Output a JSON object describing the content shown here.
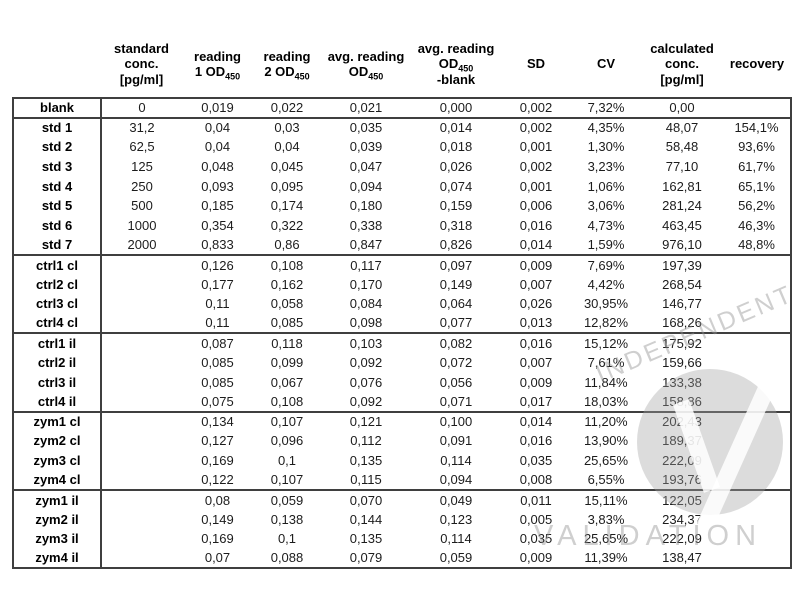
{
  "watermark": {
    "diagonal_text": "INDEPENDENT",
    "horizontal_text": "VALIDATION",
    "circle_color": "rgba(163,163,163,0.38)",
    "glyph_color": "rgba(255,255,255,0.85)",
    "text_color": "rgba(148,148,148,0.45)"
  },
  "table": {
    "columns": [
      {
        "id": "row-label",
        "header_lines": []
      },
      {
        "id": "standard-conc",
        "header_lines": [
          {
            "t": "standard"
          },
          {
            "t": "conc."
          },
          {
            "t": "[pg/ml]"
          }
        ]
      },
      {
        "id": "reading-1",
        "header_lines": [
          {
            "t": "reading"
          },
          {
            "t": "1 OD",
            "sub": "450"
          }
        ]
      },
      {
        "id": "reading-2",
        "header_lines": [
          {
            "t": "reading"
          },
          {
            "t": "2 OD",
            "sub": "450"
          }
        ]
      },
      {
        "id": "avg-reading",
        "header_lines": [
          {
            "t": "avg. reading"
          },
          {
            "t": "OD",
            "sub": "450"
          }
        ]
      },
      {
        "id": "avg-reading-blank",
        "header_lines": [
          {
            "t": "avg. reading"
          },
          {
            "t": "OD",
            "sub": "450"
          },
          {
            "t": "-blank"
          }
        ]
      },
      {
        "id": "sd",
        "header_lines": [
          {
            "t": "SD"
          }
        ]
      },
      {
        "id": "cv",
        "header_lines": [
          {
            "t": "CV"
          }
        ]
      },
      {
        "id": "calculated-conc",
        "header_lines": [
          {
            "t": "calculated"
          },
          {
            "t": "conc."
          },
          {
            "t": "[pg/ml]"
          }
        ]
      },
      {
        "id": "recovery",
        "header_lines": [
          {
            "t": "recovery"
          }
        ]
      }
    ],
    "groups": [
      {
        "name": "blank",
        "rows": [
          {
            "label": "blank",
            "cells": [
              "0",
              "0,019",
              "0,022",
              "0,021",
              "0,000",
              "0,002",
              "7,32%",
              "0,00",
              ""
            ]
          }
        ]
      },
      {
        "name": "standards",
        "rows": [
          {
            "label": "std 1",
            "cells": [
              "31,2",
              "0,04",
              "0,03",
              "0,035",
              "0,014",
              "0,002",
              "4,35%",
              "48,07",
              "154,1%"
            ]
          },
          {
            "label": "std 2",
            "cells": [
              "62,5",
              "0,04",
              "0,04",
              "0,039",
              "0,018",
              "0,001",
              "1,30%",
              "58,48",
              "93,6%"
            ]
          },
          {
            "label": "std 3",
            "cells": [
              "125",
              "0,048",
              "0,045",
              "0,047",
              "0,026",
              "0,002",
              "3,23%",
              "77,10",
              "61,7%"
            ]
          },
          {
            "label": "std 4",
            "cells": [
              "250",
              "0,093",
              "0,095",
              "0,094",
              "0,074",
              "0,001",
              "1,06%",
              "162,81",
              "65,1%"
            ]
          },
          {
            "label": "std 5",
            "cells": [
              "500",
              "0,185",
              "0,174",
              "0,180",
              "0,159",
              "0,006",
              "3,06%",
              "281,24",
              "56,2%"
            ]
          },
          {
            "label": "std 6",
            "cells": [
              "1000",
              "0,354",
              "0,322",
              "0,338",
              "0,318",
              "0,016",
              "4,73%",
              "463,45",
              "46,3%"
            ]
          },
          {
            "label": "std 7",
            "cells": [
              "2000",
              "0,833",
              "0,86",
              "0,847",
              "0,826",
              "0,014",
              "1,59%",
              "976,10",
              "48,8%"
            ]
          }
        ]
      },
      {
        "name": "ctrl-cl",
        "rows": [
          {
            "label": "ctrl1 cl",
            "cells": [
              "",
              "0,126",
              "0,108",
              "0,117",
              "0,097",
              "0,009",
              "7,69%",
              "197,39",
              ""
            ]
          },
          {
            "label": "ctrl2 cl",
            "cells": [
              "",
              "0,177",
              "0,162",
              "0,170",
              "0,149",
              "0,007",
              "4,42%",
              "268,54",
              ""
            ]
          },
          {
            "label": "ctrl3 cl",
            "cells": [
              "",
              "0,11",
              "0,058",
              "0,084",
              "0,064",
              "0,026",
              "30,95%",
              "146,77",
              ""
            ]
          },
          {
            "label": "ctrl4 cl",
            "cells": [
              "",
              "0,11",
              "0,085",
              "0,098",
              "0,077",
              "0,013",
              "12,82%",
              "168,26",
              ""
            ]
          }
        ]
      },
      {
        "name": "ctrl-il",
        "rows": [
          {
            "label": "ctrl1 il",
            "cells": [
              "",
              "0,087",
              "0,118",
              "0,103",
              "0,082",
              "0,016",
              "15,12%",
              "175,92",
              ""
            ]
          },
          {
            "label": "ctrl2 il",
            "cells": [
              "",
              "0,085",
              "0,099",
              "0,092",
              "0,072",
              "0,007",
              "7,61%",
              "159,66",
              ""
            ]
          },
          {
            "label": "ctrl3 il",
            "cells": [
              "",
              "0,085",
              "0,067",
              "0,076",
              "0,056",
              "0,009",
              "11,84%",
              "133,38",
              ""
            ]
          },
          {
            "label": "ctrl4 il",
            "cells": [
              "",
              "0,075",
              "0,108",
              "0,092",
              "0,071",
              "0,017",
              "18,03%",
              "158,86",
              ""
            ]
          }
        ]
      },
      {
        "name": "zym-cl",
        "rows": [
          {
            "label": "zym1 cl",
            "cells": [
              "",
              "0,134",
              "0,107",
              "0,121",
              "0,100",
              "0,014",
              "11,20%",
              "202,43",
              ""
            ]
          },
          {
            "label": "zym2 cl",
            "cells": [
              "",
              "0,127",
              "0,096",
              "0,112",
              "0,091",
              "0,016",
              "13,90%",
              "189,37",
              ""
            ]
          },
          {
            "label": "zym3 cl",
            "cells": [
              "",
              "0,169",
              "0,1",
              "0,135",
              "0,114",
              "0,035",
              "25,65%",
              "222,09",
              ""
            ]
          },
          {
            "label": "zym4 cl",
            "cells": [
              "",
              "0,122",
              "0,107",
              "0,115",
              "0,094",
              "0,008",
              "6,55%",
              "193,76",
              ""
            ]
          }
        ]
      },
      {
        "name": "zym-il",
        "rows": [
          {
            "label": "zym1 il",
            "cells": [
              "",
              "0,08",
              "0,059",
              "0,070",
              "0,049",
              "0,011",
              "15,11%",
              "122,05",
              ""
            ]
          },
          {
            "label": "zym2 il",
            "cells": [
              "",
              "0,149",
              "0,138",
              "0,144",
              "0,123",
              "0,005",
              "3,83%",
              "234,37",
              ""
            ]
          },
          {
            "label": "zym3 il",
            "cells": [
              "",
              "0,169",
              "0,1",
              "0,135",
              "0,114",
              "0,035",
              "25,65%",
              "222,09",
              ""
            ]
          },
          {
            "label": "zym4 il",
            "cells": [
              "",
              "0,07",
              "0,088",
              "0,079",
              "0,059",
              "0,009",
              "11,39%",
              "138,47",
              ""
            ]
          }
        ]
      }
    ]
  }
}
